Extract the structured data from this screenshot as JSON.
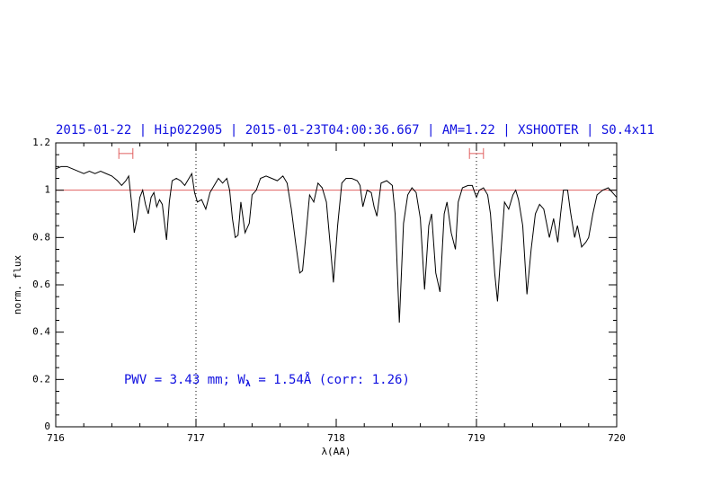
{
  "chart_data": {
    "type": "line",
    "title": "2015-01-22 | Hip022905 | 2015-01-23T04:00:36.667 | AM=1.22 | XSHOOTER | S0.4x11",
    "xlabel": "λ(AA)",
    "ylabel": "norm. flux",
    "xlim": [
      716,
      720
    ],
    "ylim": [
      0,
      1.2
    ],
    "xticks": [
      716,
      717,
      718,
      719,
      720
    ],
    "yticks": [
      0,
      0.2,
      0.4,
      0.6,
      0.8,
      1,
      1.2
    ],
    "xminorticks": [
      716.2,
      716.4,
      716.6,
      716.8,
      717.2,
      717.4,
      717.6,
      717.8,
      718.2,
      718.4,
      718.6,
      718.8,
      719.2,
      719.4,
      719.6,
      719.8
    ],
    "yminorticks": [
      0.05,
      0.1,
      0.15,
      0.25,
      0.3,
      0.35,
      0.45,
      0.5,
      0.55,
      0.65,
      0.7,
      0.75,
      0.85,
      0.9,
      0.95,
      1.05,
      1.1,
      1.15
    ],
    "series": [
      {
        "color": "#000000",
        "x": [
          716.0,
          716.04,
          716.08,
          716.12,
          716.16,
          716.2,
          716.24,
          716.28,
          716.32,
          716.36,
          716.4,
          716.44,
          716.47,
          716.5,
          716.52,
          716.54,
          716.56,
          716.58,
          716.6,
          716.62,
          716.64,
          716.66,
          716.68,
          716.7,
          716.72,
          716.74,
          716.76,
          716.79,
          716.81,
          716.83,
          716.86,
          716.89,
          716.92,
          716.95,
          716.97,
          716.99,
          717.01,
          717.04,
          717.07,
          717.1,
          717.13,
          717.16,
          717.19,
          717.22,
          717.24,
          717.26,
          717.28,
          717.3,
          717.32,
          717.35,
          717.38,
          717.4,
          717.43,
          717.46,
          717.5,
          717.54,
          717.58,
          717.62,
          717.65,
          717.68,
          717.71,
          717.74,
          717.76,
          717.79,
          717.81,
          717.84,
          717.87,
          717.9,
          717.93,
          717.96,
          717.98,
          718.01,
          718.04,
          718.07,
          718.11,
          718.15,
          718.17,
          718.19,
          718.22,
          718.25,
          718.27,
          718.29,
          718.32,
          718.36,
          718.4,
          718.42,
          718.45,
          718.48,
          718.51,
          718.54,
          718.57,
          718.6,
          718.63,
          718.66,
          718.68,
          718.71,
          718.74,
          718.77,
          718.79,
          718.82,
          718.85,
          718.87,
          718.9,
          718.94,
          718.97,
          719.0,
          719.02,
          719.05,
          719.08,
          719.1,
          719.13,
          719.15,
          719.17,
          719.2,
          719.23,
          719.26,
          719.28,
          719.3,
          719.33,
          719.36,
          719.39,
          719.42,
          719.45,
          719.48,
          719.5,
          719.52,
          719.55,
          719.58,
          719.6,
          719.62,
          719.65,
          719.67,
          719.7,
          719.72,
          719.75,
          719.78,
          719.8,
          719.83,
          719.86,
          719.9,
          719.94,
          719.97,
          720.0
        ],
        "values": [
          1.09,
          1.1,
          1.1,
          1.09,
          1.08,
          1.07,
          1.08,
          1.07,
          1.08,
          1.07,
          1.06,
          1.04,
          1.02,
          1.04,
          1.06,
          0.95,
          0.82,
          0.88,
          0.97,
          1.0,
          0.94,
          0.9,
          0.97,
          0.99,
          0.93,
          0.96,
          0.94,
          0.79,
          0.95,
          1.04,
          1.05,
          1.04,
          1.02,
          1.05,
          1.07,
          0.99,
          0.95,
          0.96,
          0.92,
          0.99,
          1.02,
          1.05,
          1.03,
          1.05,
          1.0,
          0.88,
          0.8,
          0.81,
          0.95,
          0.82,
          0.86,
          0.98,
          1.0,
          1.05,
          1.06,
          1.05,
          1.04,
          1.06,
          1.03,
          0.92,
          0.78,
          0.65,
          0.66,
          0.85,
          0.98,
          0.95,
          1.03,
          1.01,
          0.95,
          0.75,
          0.61,
          0.85,
          1.03,
          1.05,
          1.05,
          1.04,
          1.02,
          0.93,
          1.0,
          0.99,
          0.93,
          0.89,
          1.03,
          1.04,
          1.02,
          0.9,
          0.44,
          0.86,
          0.98,
          1.01,
          0.99,
          0.88,
          0.58,
          0.85,
          0.9,
          0.65,
          0.57,
          0.9,
          0.95,
          0.82,
          0.75,
          0.95,
          1.01,
          1.02,
          1.02,
          0.97,
          1.0,
          1.01,
          0.98,
          0.9,
          0.65,
          0.53,
          0.7,
          0.95,
          0.92,
          0.98,
          1.0,
          0.96,
          0.85,
          0.56,
          0.75,
          0.9,
          0.94,
          0.92,
          0.86,
          0.8,
          0.88,
          0.78,
          0.9,
          1.0,
          1.0,
          0.91,
          0.8,
          0.85,
          0.76,
          0.78,
          0.8,
          0.9,
          0.98,
          1.0,
          1.01,
          0.99,
          0.97
        ]
      }
    ],
    "hlines": [
      {
        "y": 1,
        "color": "#e06060"
      }
    ],
    "vlines": [
      717,
      719
    ],
    "markers": [
      {
        "x": [
          716.45,
          716.55
        ],
        "y": 1.155,
        "color": "#e06060"
      },
      {
        "x": [
          718.95,
          719.05
        ],
        "y": 1.155,
        "color": "#e06060"
      }
    ],
    "annotation": [
      "PWV = 3.43 mm; W",
      "λ",
      " = 1.54Å (corr: 1.26)"
    ]
  }
}
